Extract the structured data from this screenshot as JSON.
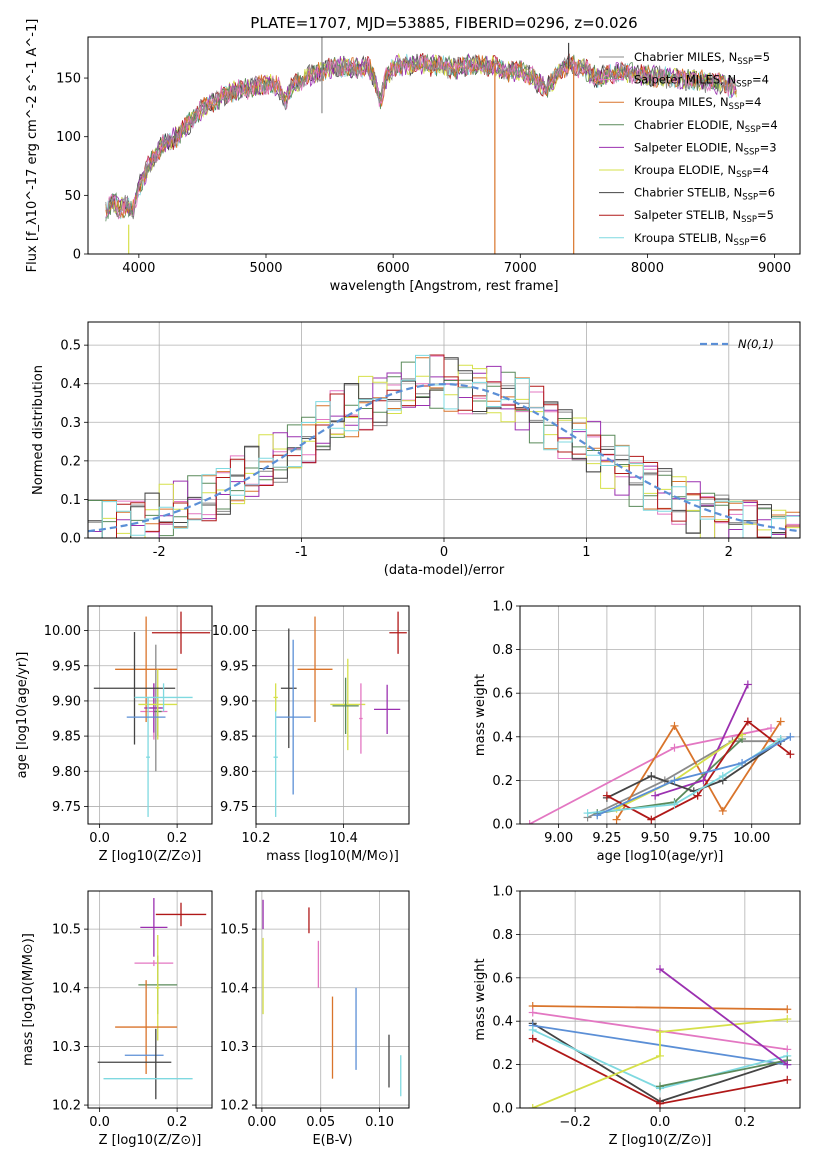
{
  "title": "PLATE=1707, MJD=53885, FIBERID=0296, z=0.026",
  "colors": {
    "Chabrier MILES": "#8a8a8a",
    "Salpeter MILES": "#e377c2",
    "Kroupa MILES": "#d9742b",
    "Chabrier ELODIE": "#5a8a5a",
    "Salpeter ELODIE": "#9b30b0",
    "Kroupa ELODIE": "#d6e04a",
    "Chabrier STELIB": "#444444",
    "Salpeter STELIB": "#b01818",
    "Kroupa STELIB": "#7fd9e0",
    "normal_curve": "#5b8fd6"
  },
  "chart_data": [
    {
      "id": "spectrum",
      "type": "line",
      "title": "PLATE=1707, MJD=53885, FIBERID=0296, z=0.026",
      "xlabel": "wavelength [Angstrom, rest frame]",
      "ylabel": "Flux [f_λ10^-17 erg cm^-2 s^-1 A^-1]",
      "xlim": [
        3600,
        9200
      ],
      "ylim": [
        0,
        185
      ],
      "xticks": [
        4000,
        5000,
        6000,
        7000,
        8000,
        9000
      ],
      "yticks": [
        0,
        50,
        100,
        150
      ],
      "legend_position": "top-right",
      "legend": [
        {
          "label": "Chabrier MILES, N",
          "sub": "SSP",
          "suffix": "=5"
        },
        {
          "label": "Salpeter MILES, N",
          "sub": "SSP",
          "suffix": "=4"
        },
        {
          "label": "Kroupa MILES, N",
          "sub": "SSP",
          "suffix": "=4"
        },
        {
          "label": "Chabrier ELODIE, N",
          "sub": "SSP",
          "suffix": "=4"
        },
        {
          "label": "Salpeter ELODIE, N",
          "sub": "SSP",
          "suffix": "=3"
        },
        {
          "label": "Kroupa ELODIE, N",
          "sub": "SSP",
          "suffix": "=4"
        },
        {
          "label": "Chabrier STELIB, N",
          "sub": "SSP",
          "suffix": "=6"
        },
        {
          "label": "Salpeter STELIB, N",
          "sub": "SSP",
          "suffix": "=5"
        },
        {
          "label": "Kroupa STELIB, N",
          "sub": "SSP",
          "suffix": "=6"
        }
      ],
      "continuum": [
        [
          3740,
          35
        ],
        [
          3800,
          45
        ],
        [
          3850,
          38
        ],
        [
          3900,
          42
        ],
        [
          3950,
          36
        ],
        [
          4000,
          58
        ],
        [
          4100,
          80
        ],
        [
          4200,
          95
        ],
        [
          4300,
          100
        ],
        [
          4400,
          112
        ],
        [
          4500,
          125
        ],
        [
          4600,
          130
        ],
        [
          4700,
          138
        ],
        [
          4800,
          140
        ],
        [
          4900,
          142
        ],
        [
          5000,
          145
        ],
        [
          5100,
          143
        ],
        [
          5150,
          130
        ],
        [
          5200,
          142
        ],
        [
          5300,
          150
        ],
        [
          5400,
          155
        ],
        [
          5500,
          158
        ],
        [
          5600,
          160
        ],
        [
          5700,
          158
        ],
        [
          5800,
          160
        ],
        [
          5850,
          150
        ],
        [
          5900,
          130
        ],
        [
          5950,
          152
        ],
        [
          6000,
          160
        ],
        [
          6200,
          162
        ],
        [
          6400,
          160
        ],
        [
          6500,
          158
        ],
        [
          6600,
          162
        ],
        [
          6800,
          160
        ],
        [
          6900,
          155
        ],
        [
          7000,
          157
        ],
        [
          7100,
          150
        ],
        [
          7200,
          140
        ],
        [
          7300,
          155
        ],
        [
          7400,
          162
        ],
        [
          7500,
          158
        ],
        [
          7600,
          150
        ],
        [
          7700,
          153
        ],
        [
          7800,
          155
        ],
        [
          8000,
          152
        ],
        [
          8200,
          150
        ],
        [
          8400,
          148
        ],
        [
          8600,
          145
        ],
        [
          8700,
          140
        ]
      ],
      "spikes": [
        {
          "x": 3920,
          "y0": 0,
          "y1": 25
        },
        {
          "x": 5440,
          "y0": 120,
          "y1": 185
        },
        {
          "x": 6800,
          "y0": 0,
          "y1": 160
        },
        {
          "x": 7420,
          "y0": 0,
          "y1": 160
        },
        {
          "x": 7380,
          "y0": 158,
          "y1": 180
        }
      ]
    },
    {
      "id": "residuals",
      "type": "line",
      "xlabel": "(data-model)/error",
      "ylabel": "Normed distribution",
      "xlim": [
        -2.5,
        2.5
      ],
      "ylim": [
        0,
        0.56
      ],
      "xticks": [
        -2,
        -1,
        0,
        1,
        2
      ],
      "yticks": [
        0.0,
        0.1,
        0.2,
        0.3,
        0.4,
        0.5
      ],
      "legend": "N(0,1)",
      "legend_position": "top-right",
      "histogram_bin_width": 0.1,
      "series_offsets": [
        0.012,
        -0.018,
        0.021,
        -0.009,
        0.027,
        -0.024,
        0.006,
        0.03,
        -0.015
      ]
    },
    {
      "id": "age-vs-Z",
      "type": "scatter",
      "xlabel": "Z [log10(Z/Z⊙)]",
      "ylabel": "age  [log10(age/yr)]",
      "xlim": [
        -0.03,
        0.29
      ],
      "ylim": [
        9.725,
        10.035
      ],
      "xticks": [
        0.0,
        0.2
      ],
      "yticks": [
        9.75,
        9.8,
        9.85,
        9.9,
        9.95,
        10.0
      ],
      "points": [
        {
          "series": "Chabrier MILES",
          "x": 0.145,
          "y": 9.89,
          "xerr": 0.015,
          "yerr": 0.09
        },
        {
          "series": "Salpeter MILES",
          "x": 0.14,
          "y": 9.885,
          "xerr": 0.035,
          "yerr": 0.04
        },
        {
          "series": "Kroupa MILES",
          "x": 0.12,
          "y": 9.945,
          "xerr": 0.08,
          "yerr": 0.075
        },
        {
          "series": "Chabrier ELODIE",
          "x": 0.15,
          "y": 9.885,
          "xerr": 0.01,
          "yerr": 0.035
        },
        {
          "series": "Salpeter ELODIE",
          "x": 0.14,
          "y": 9.89,
          "xerr": 0.025,
          "yerr": 0.035
        },
        {
          "series": "Kroupa ELODIE",
          "x": 0.15,
          "y": 9.895,
          "xerr": 0.05,
          "yerr": 0.05
        },
        {
          "series": "Chabrier STELIB",
          "x": 0.09,
          "y": 9.918,
          "xerr": 0.105,
          "yerr": 0.08
        },
        {
          "series": "Salpeter STELIB",
          "x": 0.21,
          "y": 9.997,
          "xerr": 0.075,
          "yerr": 0.03
        },
        {
          "series": "Kroupa STELIB",
          "x": 0.165,
          "y": 9.905,
          "xerr": 0.075,
          "yerr": 0.02
        },
        {
          "series": "Kroupa STELIB",
          "x": 0.125,
          "y": 9.82,
          "xerr": 0.005,
          "yerr": 0.085
        },
        {
          "series": "normal_curve",
          "x": 0.12,
          "y": 9.877,
          "xerr": 0.05,
          "yerr": 0.0
        }
      ]
    },
    {
      "id": "age-vs-mass",
      "type": "scatter",
      "xlabel": "mass [log10(M/M⊙)]",
      "ylabel": "",
      "xlim": [
        10.2,
        10.55
      ],
      "ylim": [
        9.725,
        10.035
      ],
      "xticks": [
        10.2,
        10.4
      ],
      "yticks": [
        9.75,
        9.8,
        9.85,
        9.9,
        9.95,
        10.0
      ],
      "points": [
        {
          "series": "Chabrier STELIB",
          "x": 10.275,
          "y": 9.918,
          "xerr": 0.018,
          "yerr": 0.085
        },
        {
          "series": "normal_curve",
          "x": 10.285,
          "y": 9.877,
          "xerr": 0.04,
          "yerr": 0.11
        },
        {
          "series": "Kroupa MILES",
          "x": 10.335,
          "y": 9.945,
          "xerr": 0.04,
          "yerr": 0.075
        },
        {
          "series": "Kroupa ELODIE",
          "x": 10.41,
          "y": 9.895,
          "xerr": 0.04,
          "yerr": 0.065
        },
        {
          "series": "Chabrier ELODIE",
          "x": 10.405,
          "y": 9.893,
          "xerr": 0.03,
          "yerr": 0.04
        },
        {
          "series": "Salpeter MILES",
          "x": 10.44,
          "y": 9.875,
          "xerr": 0.004,
          "yerr": 0.05
        },
        {
          "series": "Salpeter ELODIE",
          "x": 10.5,
          "y": 9.888,
          "xerr": 0.03,
          "yerr": 0.035
        },
        {
          "series": "Salpeter STELIB",
          "x": 10.525,
          "y": 9.997,
          "xerr": 0.02,
          "yerr": 0.03
        },
        {
          "series": "Kroupa STELIB",
          "x": 10.245,
          "y": 9.82,
          "xerr": 0.005,
          "yerr": 0.085
        },
        {
          "series": "Kroupa ELODIE",
          "x": 10.245,
          "y": 9.905,
          "xerr": 0.005,
          "yerr": 0.02
        }
      ]
    },
    {
      "id": "mass-weight-vs-age",
      "type": "line",
      "xlabel": "age  [log10(age/yr)]",
      "ylabel": "mass weight",
      "xlim": [
        8.8,
        10.25
      ],
      "ylim": [
        0,
        1.0
      ],
      "xticks": [
        9.0,
        9.25,
        9.5,
        9.75,
        10.0
      ],
      "yticks": [
        0.0,
        0.2,
        0.4,
        0.6,
        0.8,
        1.0
      ],
      "series": [
        {
          "name": "Chabrier MILES",
          "x": [
            9.15,
            9.55,
            9.9,
            10.15
          ],
          "y": [
            0.03,
            0.2,
            0.38,
            0.38
          ]
        },
        {
          "name": "Salpeter MILES",
          "x": [
            8.85,
            9.6,
            10.1
          ],
          "y": [
            0.0,
            0.35,
            0.44
          ]
        },
        {
          "name": "Kroupa MILES",
          "x": [
            9.3,
            9.6,
            9.85,
            10.15
          ],
          "y": [
            0.02,
            0.45,
            0.06,
            0.47
          ]
        },
        {
          "name": "Chabrier ELODIE",
          "x": [
            9.2,
            9.6,
            9.95
          ],
          "y": [
            0.05,
            0.1,
            0.39
          ]
        },
        {
          "name": "Salpeter ELODIE",
          "x": [
            9.5,
            9.75,
            9.98
          ],
          "y": [
            0.13,
            0.2,
            0.64
          ]
        },
        {
          "name": "Kroupa ELODIE",
          "x": [
            9.3,
            9.6,
            9.95
          ],
          "y": [
            0.07,
            0.2,
            0.41
          ]
        },
        {
          "name": "Chabrier STELIB",
          "x": [
            9.25,
            9.48,
            9.7,
            9.85,
            10.15
          ],
          "y": [
            0.12,
            0.22,
            0.15,
            0.2,
            0.38
          ]
        },
        {
          "name": "Salpeter STELIB",
          "x": [
            9.25,
            9.48,
            9.72,
            9.98,
            10.2
          ],
          "y": [
            0.13,
            0.02,
            0.13,
            0.47,
            0.32
          ]
        },
        {
          "name": "Kroupa STELIB",
          "x": [
            9.15,
            9.6,
            9.85,
            10.15
          ],
          "y": [
            0.05,
            0.09,
            0.22,
            0.39
          ]
        },
        {
          "name": "normal_curve",
          "x": [
            9.2,
            9.6,
            9.95,
            10.2
          ],
          "y": [
            0.04,
            0.2,
            0.28,
            0.4
          ]
        }
      ]
    },
    {
      "id": "mass-vs-Z",
      "type": "scatter",
      "xlabel": "Z [log10(Z/Z⊙)]",
      "ylabel": "mass [log10(M/M⊙)]",
      "xlim": [
        -0.03,
        0.29
      ],
      "ylim": [
        10.195,
        10.565
      ],
      "xticks": [
        0.0,
        0.2
      ],
      "yticks": [
        10.2,
        10.3,
        10.4,
        10.5
      ],
      "points": [
        {
          "series": "Salpeter STELIB",
          "x": 0.21,
          "y": 10.525,
          "xerr": 0.065,
          "yerr": 0.02
        },
        {
          "series": "Salpeter ELODIE",
          "x": 0.14,
          "y": 10.503,
          "xerr": 0.035,
          "yerr": 0.05
        },
        {
          "series": "Salpeter MILES",
          "x": 0.14,
          "y": 10.442,
          "xerr": 0.05,
          "yerr": 0.005
        },
        {
          "series": "Chabrier ELODIE",
          "x": 0.15,
          "y": 10.405,
          "xerr": 0.05,
          "yerr": 0.05
        },
        {
          "series": "Kroupa ELODIE",
          "x": 0.15,
          "y": 10.4,
          "xerr": 0.005,
          "yerr": 0.09
        },
        {
          "series": "Kroupa MILES",
          "x": 0.12,
          "y": 10.333,
          "xerr": 0.08,
          "yerr": 0.08
        },
        {
          "series": "normal_curve",
          "x": 0.115,
          "y": 10.285,
          "xerr": 0.05,
          "yerr": 0.0
        },
        {
          "series": "Chabrier STELIB",
          "x": 0.09,
          "y": 10.273,
          "xerr": 0.095,
          "yerr": 0.0
        },
        {
          "series": "Chabrier STELIB",
          "x": 0.145,
          "y": 10.27,
          "xerr": 0.0,
          "yerr": 0.06
        },
        {
          "series": "Kroupa STELIB",
          "x": 0.125,
          "y": 10.245,
          "xerr": 0.115,
          "yerr": 0.0
        }
      ]
    },
    {
      "id": "mass-vs-EBV",
      "type": "scatter",
      "xlabel": "E(B-V)",
      "ylabel": "",
      "xlim": [
        -0.005,
        0.125
      ],
      "ylim": [
        10.195,
        10.565
      ],
      "xticks": [
        0.0,
        0.05,
        0.1
      ],
      "yticks": [
        10.2,
        10.3,
        10.4,
        10.5
      ],
      "points": [
        {
          "series": "Salpeter ELODIE",
          "x": 0.001,
          "y": 10.525,
          "xerr": 0.0,
          "yerr": 0.025
        },
        {
          "series": "Kroupa ELODIE",
          "x": 0.001,
          "y": 10.42,
          "xerr": 0.0,
          "yerr": 0.065
        },
        {
          "series": "Salpeter STELIB",
          "x": 0.04,
          "y": 10.515,
          "xerr": 0.0,
          "yerr": 0.022
        },
        {
          "series": "Salpeter MILES",
          "x": 0.048,
          "y": 10.44,
          "xerr": 0.0,
          "yerr": 0.04
        },
        {
          "series": "Kroupa MILES",
          "x": 0.06,
          "y": 10.315,
          "xerr": 0.0,
          "yerr": 0.07
        },
        {
          "series": "normal_curve",
          "x": 0.08,
          "y": 10.33,
          "xerr": 0.0,
          "yerr": 0.07
        },
        {
          "series": "Chabrier STELIB",
          "x": 0.108,
          "y": 10.275,
          "xerr": 0.0,
          "yerr": 0.045
        },
        {
          "series": "Kroupa STELIB",
          "x": 0.118,
          "y": 10.25,
          "xerr": 0.0,
          "yerr": 0.035
        }
      ]
    },
    {
      "id": "mass-weight-vs-Z",
      "type": "line",
      "xlabel": "Z [log10(Z/Z⊙)]",
      "ylabel": "mass weight",
      "xlim": [
        -0.33,
        0.33
      ],
      "ylim": [
        0,
        1.0
      ],
      "xticks": [
        -0.2,
        0.0,
        0.2
      ],
      "yticks": [
        0.0,
        0.2,
        0.4,
        0.6,
        0.8,
        1.0
      ],
      "series": [
        {
          "name": "Kroupa MILES",
          "x": [
            -0.3,
            0.3
          ],
          "y": [
            0.47,
            0.455
          ]
        },
        {
          "name": "Salpeter MILES",
          "x": [
            -0.3,
            0.3
          ],
          "y": [
            0.44,
            0.27
          ]
        },
        {
          "name": "Chabrier STELIB",
          "x": [
            -0.3,
            0.0,
            0.3
          ],
          "y": [
            0.39,
            0.03,
            0.22
          ]
        },
        {
          "name": "normal_curve",
          "x": [
            -0.3,
            0.3
          ],
          "y": [
            0.38,
            0.2
          ]
        },
        {
          "name": "Salpeter STELIB",
          "x": [
            -0.3,
            0.0,
            0.3
          ],
          "y": [
            0.32,
            0.02,
            0.13
          ]
        },
        {
          "name": "Kroupa STELIB",
          "x": [
            -0.3,
            0.0,
            0.3
          ],
          "y": [
            0.36,
            0.09,
            0.24
          ]
        },
        {
          "name": "Kroupa ELODIE",
          "x": [
            -0.3,
            0.0,
            0.0,
            0.3
          ],
          "y": [
            0.0,
            0.24,
            0.35,
            0.41
          ]
        },
        {
          "name": "Chabrier ELODIE",
          "x": [
            0.0,
            0.3
          ],
          "y": [
            0.1,
            0.22
          ]
        },
        {
          "name": "Salpeter ELODIE",
          "x": [
            0.0,
            0.3
          ],
          "y": [
            0.64,
            0.2
          ]
        }
      ]
    }
  ]
}
